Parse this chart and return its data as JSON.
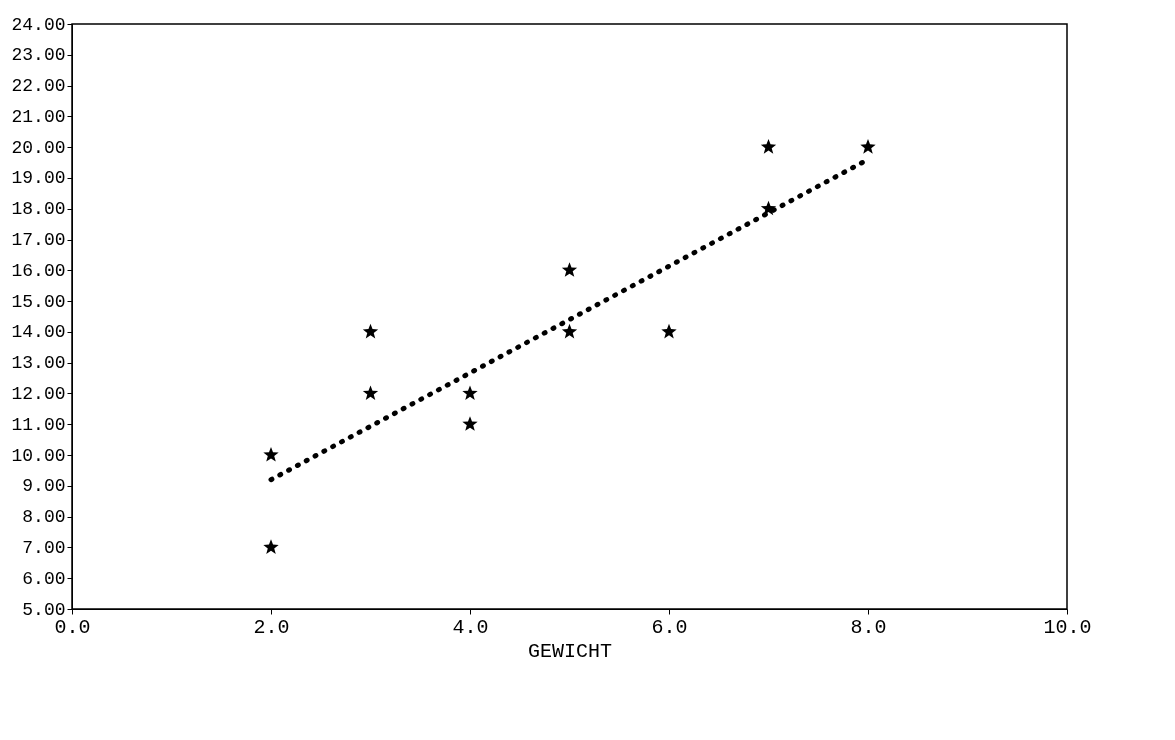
{
  "chart_data": {
    "type": "scatter",
    "xlabel": "GEWICHT",
    "series": [
      {
        "marker": "star",
        "color": "#000000",
        "x": [
          2.0,
          2.0,
          3.0,
          3.0,
          4.0,
          4.0,
          5.0,
          5.0,
          6.0,
          7.0,
          7.0,
          8.0
        ],
        "values": [
          7,
          10,
          14,
          12,
          12,
          11,
          16,
          14,
          14,
          20,
          18,
          20
        ]
      },
      {
        "type": "line",
        "color": "#000000",
        "line_style": "dotted",
        "x": [
          2.0,
          8.0
        ],
        "values": [
          9.2,
          19.6
        ]
      }
    ],
    "xlim": [
      0,
      10
    ],
    "ylim": [
      5,
      24
    ],
    "xticks": [
      {
        "value": 0,
        "label": "0.0"
      },
      {
        "value": 2,
        "label": "2.0"
      },
      {
        "value": 4,
        "label": "4.0"
      },
      {
        "value": 6,
        "label": "6.0"
      },
      {
        "value": 8,
        "label": "8.0"
      },
      {
        "value": 10,
        "label": "10.0"
      }
    ],
    "yticks": [
      {
        "value": 5,
        "label": "5.00"
      },
      {
        "value": 6,
        "label": "6.00"
      },
      {
        "value": 7,
        "label": "7.00"
      },
      {
        "value": 8,
        "label": "8.00"
      },
      {
        "value": 9,
        "label": "9.00"
      },
      {
        "value": 10,
        "label": "10.00"
      },
      {
        "value": 11,
        "label": "11.00"
      },
      {
        "value": 12,
        "label": "12.00"
      },
      {
        "value": 13,
        "label": "13.00"
      },
      {
        "value": 14,
        "label": "14.00"
      },
      {
        "value": 15,
        "label": "15.00"
      },
      {
        "value": 16,
        "label": "16.00"
      },
      {
        "value": 17,
        "label": "17.00"
      },
      {
        "value": 18,
        "label": "18.00"
      },
      {
        "value": 19,
        "label": "19.00"
      },
      {
        "value": 20,
        "label": "20.00"
      },
      {
        "value": 21,
        "label": "21.00"
      },
      {
        "value": 22,
        "label": "22.00"
      },
      {
        "value": 23,
        "label": "23.00"
      },
      {
        "value": 24,
        "label": "24.00"
      }
    ],
    "grid": false
  }
}
